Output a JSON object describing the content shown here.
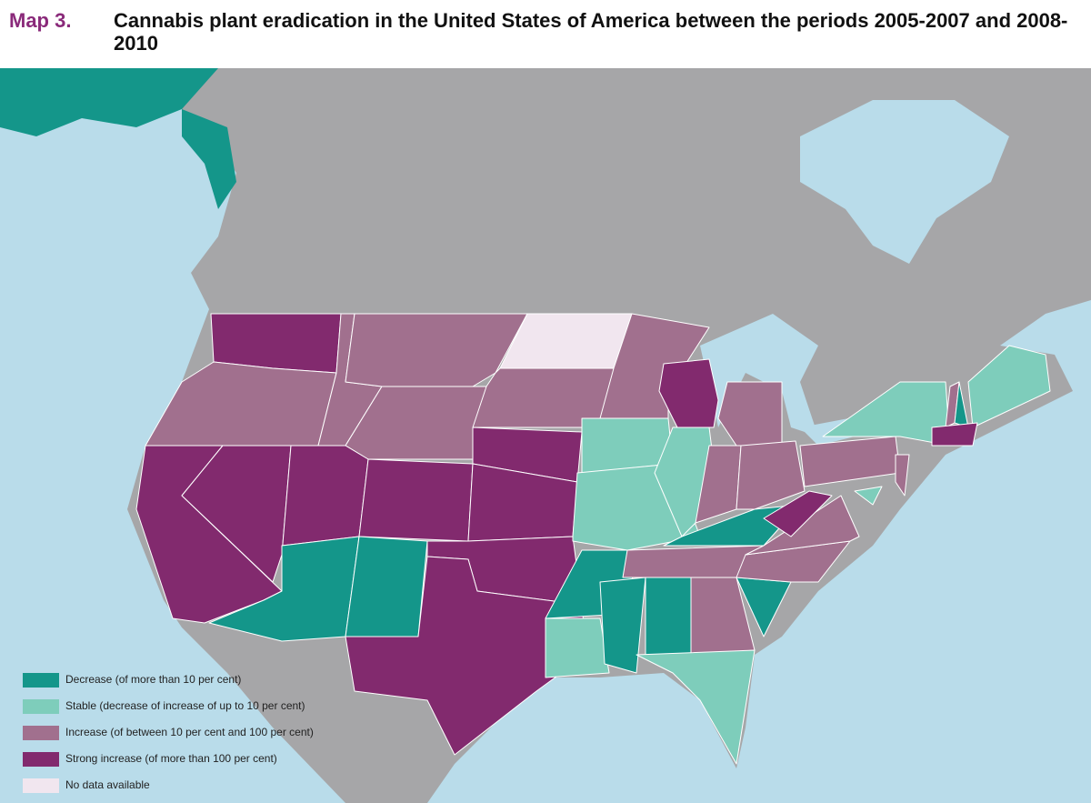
{
  "header": {
    "label": "Map 3.",
    "title": "Cannabis plant eradication in the United States of America between the periods 2005-2007 and 2008-2010"
  },
  "legend": [
    {
      "label": "Decrease (of more than 10 per cent)",
      "color": "#14968a"
    },
    {
      "label": "Stable (decrease of increase of up to 10 per cent)",
      "color": "#7ecdbb"
    },
    {
      "label": "Increase (of between 10 per cent and 100 per cent)",
      "color": "#a1708e"
    },
    {
      "label": "Strong increase (of more than 100 per cent)",
      "color": "#822a6e"
    },
    {
      "label": "No data available",
      "color": "#f1e6ef"
    }
  ]
}
